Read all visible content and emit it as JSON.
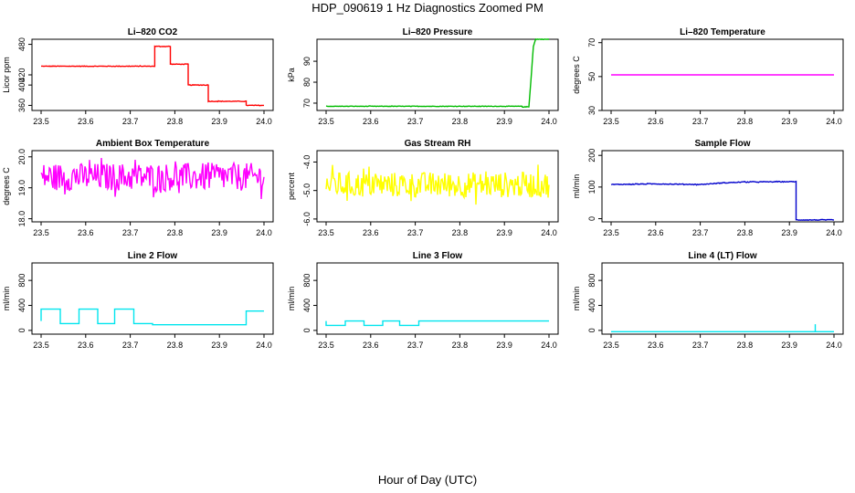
{
  "figure_title": "HDP_090619  1 Hz Diagnostics Zoomed PM",
  "x_caption": "Hour of Day (UTC)",
  "chart_data": [
    {
      "type": "line",
      "title": "Li–820 CO2",
      "ylabel": "Licor ppm",
      "color": "#ff0000",
      "xlim": [
        23.5,
        24.0
      ],
      "ylim": [
        350,
        490
      ],
      "xticks": [
        "23.5",
        "23.6",
        "23.7",
        "23.8",
        "23.9",
        "24.0"
      ],
      "yticks": [
        "360",
        "400",
        "420",
        "480"
      ],
      "ytick_values": [
        360,
        400,
        420,
        480
      ],
      "x": [
        23.5,
        23.755,
        23.755,
        23.79,
        23.79,
        23.83,
        23.83,
        23.875,
        23.875,
        23.96,
        23.96,
        24.0
      ],
      "y": [
        437,
        437,
        476,
        476,
        441,
        441,
        400,
        400,
        368,
        368,
        360,
        360
      ],
      "noise": 0.6
    },
    {
      "type": "line",
      "title": "Li–820 Pressure",
      "ylabel": "kPa",
      "color": "#00bb00",
      "xlim": [
        23.5,
        24.0
      ],
      "ylim": [
        66.5,
        100.5
      ],
      "xticks": [
        "23.5",
        "23.6",
        "23.7",
        "23.8",
        "23.9",
        "24.0"
      ],
      "yticks": [
        "70",
        "80",
        "90"
      ],
      "ytick_values": [
        70,
        80,
        90
      ],
      "x": [
        23.5,
        23.94,
        23.94,
        23.955,
        23.965,
        23.97,
        24.0
      ],
      "y": [
        68.5,
        68.5,
        68.2,
        68.2,
        97.0,
        100.5,
        100.5
      ],
      "noise": 0.12
    },
    {
      "type": "line",
      "title": "Li–820 Temperature",
      "ylabel": "degrees C",
      "color": "#ff00ff",
      "xlim": [
        23.5,
        24.0
      ],
      "ylim": [
        30,
        72
      ],
      "xticks": [
        "23.5",
        "23.6",
        "23.7",
        "23.8",
        "23.9",
        "24.0"
      ],
      "yticks": [
        "30",
        "50",
        "70"
      ],
      "ytick_values": [
        30,
        50,
        70
      ],
      "x": [
        23.5,
        24.0
      ],
      "y": [
        51.0,
        51.0
      ],
      "noise": 0
    },
    {
      "type": "line",
      "title": "Ambient Box Temperature",
      "ylabel": "degrees C",
      "color": "#ff00ff",
      "xlim": [
        23.5,
        24.0
      ],
      "ylim": [
        17.9,
        20.2
      ],
      "xticks": [
        "23.5",
        "23.6",
        "23.7",
        "23.8",
        "23.9",
        "24.0"
      ],
      "yticks": [
        "18.0",
        "19.0",
        "20.0"
      ],
      "ytick_values": [
        18.0,
        19.0,
        20.0
      ],
      "x": [
        23.5,
        24.0
      ],
      "y": [
        19.35,
        19.35
      ],
      "noise": 0.45
    },
    {
      "type": "line",
      "title": "Gas Stream RH",
      "ylabel": "percent",
      "color": "#ffff00",
      "xlim": [
        23.5,
        24.0
      ],
      "ylim": [
        -6.1,
        -3.6
      ],
      "xticks": [
        "23.5",
        "23.6",
        "23.7",
        "23.8",
        "23.9",
        "24.0"
      ],
      "yticks": [
        "-6.0",
        "-5.0",
        "-4.0"
      ],
      "ytick_values": [
        -6.0,
        -5.0,
        -4.0
      ],
      "x": [
        23.5,
        24.0
      ],
      "y": [
        -4.8,
        -4.8
      ],
      "noise": 0.45
    },
    {
      "type": "line",
      "title": "Sample Flow",
      "ylabel": "ml/min",
      "color": "#0000cc",
      "xlim": [
        23.5,
        24.0
      ],
      "ylim": [
        -10,
        215
      ],
      "xticks": [
        "23.5",
        "23.6",
        "23.7",
        "23.8",
        "23.9",
        "24.0"
      ],
      "yticks": [
        "0",
        "100",
        "200"
      ],
      "ytick_values": [
        0,
        100,
        200
      ],
      "x": [
        23.5,
        23.6,
        23.7,
        23.75,
        23.8,
        23.915,
        23.915,
        24.0
      ],
      "y": [
        108,
        110,
        108,
        113,
        116,
        117,
        -4,
        -4
      ],
      "noise": 1.2
    },
    {
      "type": "line",
      "title": "Line 2 Flow",
      "ylabel": "ml/min",
      "color": "#00e5ee",
      "xlim": [
        23.5,
        24.0
      ],
      "ylim": [
        -60,
        1080
      ],
      "xticks": [
        "23.5",
        "23.6",
        "23.7",
        "23.8",
        "23.9",
        "24.0"
      ],
      "yticks": [
        "0",
        "400",
        "800"
      ],
      "ytick_values": [
        0,
        400,
        800
      ],
      "x": [
        23.5,
        23.5,
        23.543,
        23.543,
        23.585,
        23.585,
        23.627,
        23.627,
        23.665,
        23.665,
        23.708,
        23.708,
        23.75,
        23.75,
        23.96,
        23.96,
        24.0
      ],
      "y": [
        150,
        340,
        340,
        110,
        110,
        340,
        340,
        110,
        110,
        340,
        340,
        110,
        110,
        90,
        90,
        310,
        310
      ],
      "noise": 0
    },
    {
      "type": "line",
      "title": "Line 3 Flow",
      "ylabel": "ml/min",
      "color": "#00e5ee",
      "xlim": [
        23.5,
        24.0
      ],
      "ylim": [
        -60,
        1080
      ],
      "xticks": [
        "23.5",
        "23.6",
        "23.7",
        "23.8",
        "23.9",
        "24.0"
      ],
      "yticks": [
        "0",
        "400",
        "800"
      ],
      "ytick_values": [
        0,
        400,
        800
      ],
      "x": [
        23.5,
        23.5,
        23.5,
        23.543,
        23.543,
        23.585,
        23.585,
        23.627,
        23.627,
        23.665,
        23.665,
        23.708,
        23.708,
        24.0
      ],
      "y": [
        150,
        150,
        80,
        80,
        150,
        150,
        80,
        80,
        150,
        150,
        80,
        80,
        150,
        150
      ],
      "noise": 0
    },
    {
      "type": "line",
      "title": "Line 4 (LT) Flow",
      "ylabel": "ml/min",
      "color": "#00e5ee",
      "xlim": [
        23.5,
        24.0
      ],
      "ylim": [
        -60,
        1080
      ],
      "xticks": [
        "23.5",
        "23.6",
        "23.7",
        "23.8",
        "23.9",
        "24.0"
      ],
      "yticks": [
        "0",
        "400",
        "800"
      ],
      "ytick_values": [
        0,
        400,
        800
      ],
      "x": [
        23.5,
        23.958,
        23.958,
        23.958,
        24.0
      ],
      "y": [
        -20,
        -20,
        100,
        -20,
        -20
      ],
      "noise": 0
    }
  ]
}
